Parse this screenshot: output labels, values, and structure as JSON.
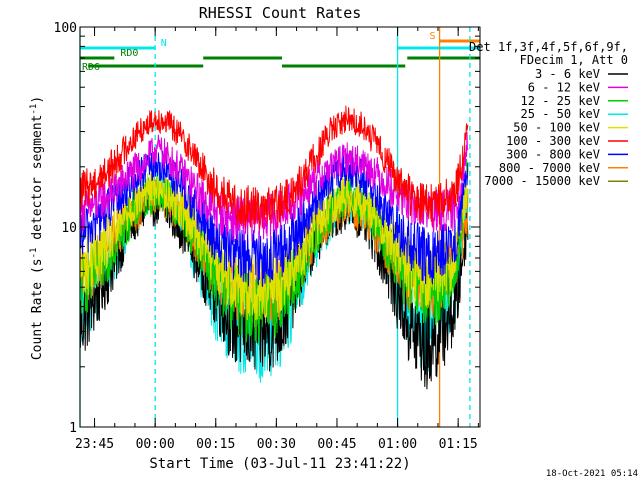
{
  "chart_data": {
    "type": "line",
    "title": "RHESSI Count Rates",
    "xlabel": "Start Time (03-Jul-11 23:41:22)",
    "ylabel": "Count Rate (s⁻¹ detector segment⁻¹)",
    "ylabel_main": "Count Rate (s",
    "ylabel_mid": " detector segment",
    "ylabel_sup": "-1",
    "ylabel_end": ")",
    "y_scale": "log",
    "ylim": [
      1,
      100
    ],
    "y_ticks": [
      {
        "value": 1,
        "label": "1"
      },
      {
        "value": 10,
        "label": "10"
      },
      {
        "value": 100,
        "label": "100"
      }
    ],
    "xlim_minutes": [
      0,
      99
    ],
    "x_ticks": [
      {
        "minute": 3.6,
        "label": "23:45"
      },
      {
        "minute": 18.6,
        "label": "00:00"
      },
      {
        "minute": 33.6,
        "label": "00:15"
      },
      {
        "minute": 48.6,
        "label": "00:30"
      },
      {
        "minute": 63.6,
        "label": "00:45"
      },
      {
        "minute": 78.6,
        "label": "01:00"
      },
      {
        "minute": 93.6,
        "label": "01:15"
      }
    ],
    "grid": false,
    "legend_placement": "right",
    "legend_header": [
      "Det 1f,3f,4f,5f,6f,9f,",
      "FDecim 1, Att 0"
    ],
    "series": [
      {
        "name": "3 - 6 keV",
        "color": "#000000",
        "x": [
          0,
          4,
          8,
          12,
          16,
          19,
          22,
          26,
          30,
          34,
          38,
          42,
          46,
          50,
          54,
          58,
          62,
          66,
          70,
          74,
          78,
          82,
          86,
          89,
          93,
          96
        ],
        "y": [
          3.3,
          4.5,
          6.5,
          10,
          12.5,
          13,
          12,
          9.5,
          6.5,
          4.5,
          3.3,
          3,
          3,
          3.4,
          5.5,
          8.5,
          11,
          12.5,
          11,
          8,
          5,
          3,
          2.5,
          3,
          4,
          11
        ]
      },
      {
        "name": "6 - 12 keV",
        "color": "#e000e0",
        "x": [
          0,
          4,
          8,
          12,
          16,
          19,
          22,
          26,
          30,
          34,
          38,
          42,
          46,
          50,
          54,
          58,
          62,
          66,
          70,
          74,
          78,
          82,
          86,
          89,
          93,
          96
        ],
        "y": [
          12,
          13,
          15,
          18,
          21,
          25,
          22,
          18,
          14,
          12,
          11,
          11,
          11,
          12,
          14,
          17,
          20,
          22,
          21,
          18,
          15,
          13,
          12,
          12,
          12,
          27
        ]
      },
      {
        "name": "12 - 25 keV",
        "color": "#00d000",
        "x": [
          0,
          4,
          8,
          12,
          16,
          19,
          22,
          26,
          30,
          34,
          38,
          42,
          46,
          50,
          54,
          58,
          62,
          66,
          70,
          74,
          78,
          82,
          86,
          89,
          93,
          96
        ],
        "y": [
          5,
          6,
          8,
          11,
          14,
          15,
          14,
          11,
          8,
          5.5,
          4.5,
          4,
          4,
          4.5,
          6,
          9,
          12,
          14,
          13,
          10,
          7,
          5,
          4.5,
          5,
          6,
          21
        ]
      },
      {
        "name": "25 - 50 keV",
        "color": "#00e8e8",
        "x": [
          0,
          4,
          8,
          12,
          16,
          19,
          22,
          26,
          30,
          34,
          38,
          42,
          46,
          50,
          54,
          58,
          62,
          66,
          70,
          74,
          78,
          82,
          86,
          89,
          93,
          96
        ],
        "y": [
          3.7,
          5,
          7,
          10,
          14,
          15.5,
          14,
          10,
          6,
          4,
          3.2,
          2.8,
          2.8,
          3.2,
          5,
          8,
          11,
          13,
          12,
          9,
          5.5,
          3.5,
          3,
          3.5,
          5,
          15
        ]
      },
      {
        "name": "50 - 100 keV",
        "color": "#e0e000",
        "x": [
          0,
          4,
          8,
          12,
          16,
          19,
          22,
          26,
          30,
          34,
          38,
          42,
          46,
          50,
          54,
          58,
          62,
          66,
          70,
          74,
          78,
          82,
          86,
          89,
          93,
          96
        ],
        "y": [
          6,
          7,
          9,
          12,
          15,
          16,
          15,
          12,
          9,
          6.5,
          5.5,
          5,
          5,
          5.5,
          7,
          10,
          13,
          14.5,
          13.5,
          11,
          8,
          6,
          5.5,
          6,
          7,
          17
        ]
      },
      {
        "name": "100 - 300 keV",
        "color": "#ff0000",
        "x": [
          0,
          4,
          8,
          12,
          16,
          19,
          22,
          26,
          30,
          34,
          38,
          42,
          46,
          50,
          54,
          58,
          62,
          66,
          70,
          74,
          78,
          82,
          86,
          89,
          93,
          96
        ],
        "y": [
          15,
          17,
          20,
          26,
          32,
          35,
          33,
          27,
          20,
          15,
          13,
          12.5,
          12.5,
          13,
          16,
          22,
          30,
          35,
          32,
          25,
          18,
          14,
          13,
          13,
          15,
          30
        ]
      },
      {
        "name": "300 - 800 keV",
        "color": "#0000ff",
        "x": [
          0,
          4,
          8,
          12,
          16,
          19,
          22,
          26,
          30,
          34,
          38,
          42,
          46,
          50,
          54,
          58,
          62,
          66,
          70,
          74,
          78,
          82,
          86,
          89,
          93,
          96
        ],
        "y": [
          9,
          10.5,
          13,
          16,
          19,
          20.5,
          19,
          15,
          11,
          8.5,
          7.5,
          7,
          7,
          7.5,
          9.5,
          13,
          17,
          19.5,
          18,
          14,
          10,
          8,
          7,
          7.5,
          9,
          18
        ]
      },
      {
        "name": "800 - 7000 keV",
        "color": "#ff8000",
        "x": [
          0,
          4,
          8,
          12,
          16,
          19,
          22,
          26,
          30,
          34,
          38,
          42,
          46,
          50,
          54,
          58,
          62,
          66,
          70,
          74,
          78,
          82,
          86,
          89,
          93,
          96
        ],
        "y": [
          5.5,
          6.5,
          8.5,
          11,
          13.5,
          14.5,
          13.5,
          11,
          8,
          6,
          5,
          4.6,
          4.6,
          5,
          6.5,
          9,
          11.5,
          13,
          12,
          9.5,
          7,
          5.5,
          5,
          5.5,
          6.5,
          12
        ]
      },
      {
        "name": "7000 - 15000 keV",
        "color": "#808000",
        "x": [],
        "y": []
      }
    ],
    "attitude_flags": [
      {
        "label": "N",
        "color": "#00e8e8",
        "level": "top",
        "start": 0,
        "end": 18.6,
        "label_at": 20
      },
      {
        "label": "",
        "color": "#00e8e8",
        "level": "top",
        "start": 78.6,
        "end": 99,
        "label_at": null
      },
      {
        "label": "S",
        "color": "#ff8000",
        "level": "highest",
        "start": 89,
        "end": 99,
        "label_at": 86.5
      },
      {
        "label": "RD0",
        "color": "#008000",
        "level": "middle",
        "start": 0,
        "end": 8.5,
        "label_at": 10
      },
      {
        "label": "",
        "color": "#008000",
        "level": "middle",
        "start": 30.5,
        "end": 50,
        "label_at": null
      },
      {
        "label": "",
        "color": "#008000",
        "level": "middle",
        "start": 81,
        "end": 99,
        "label_at": null
      },
      {
        "label": "RD6",
        "color": "#008000",
        "level": "low",
        "start": 2,
        "end": 30.5,
        "label_at": 0.5
      },
      {
        "label": "",
        "color": "#008000",
        "level": "low",
        "start": 50,
        "end": 80.5,
        "label_at": null
      }
    ],
    "markers": [
      {
        "minute": 0,
        "color": "#00e8e8",
        "style": "solid"
      },
      {
        "minute": 18.6,
        "color": "#00e8e8",
        "style": "dashed"
      },
      {
        "minute": 78.6,
        "color": "#00e8e8",
        "style": "solid"
      },
      {
        "minute": 89,
        "color": "#ff8000",
        "style": "solid"
      },
      {
        "minute": 96.5,
        "color": "#00e8e8",
        "style": "dashed"
      }
    ]
  },
  "footer": {
    "timestamp": "18-Oct-2021 05:14"
  }
}
